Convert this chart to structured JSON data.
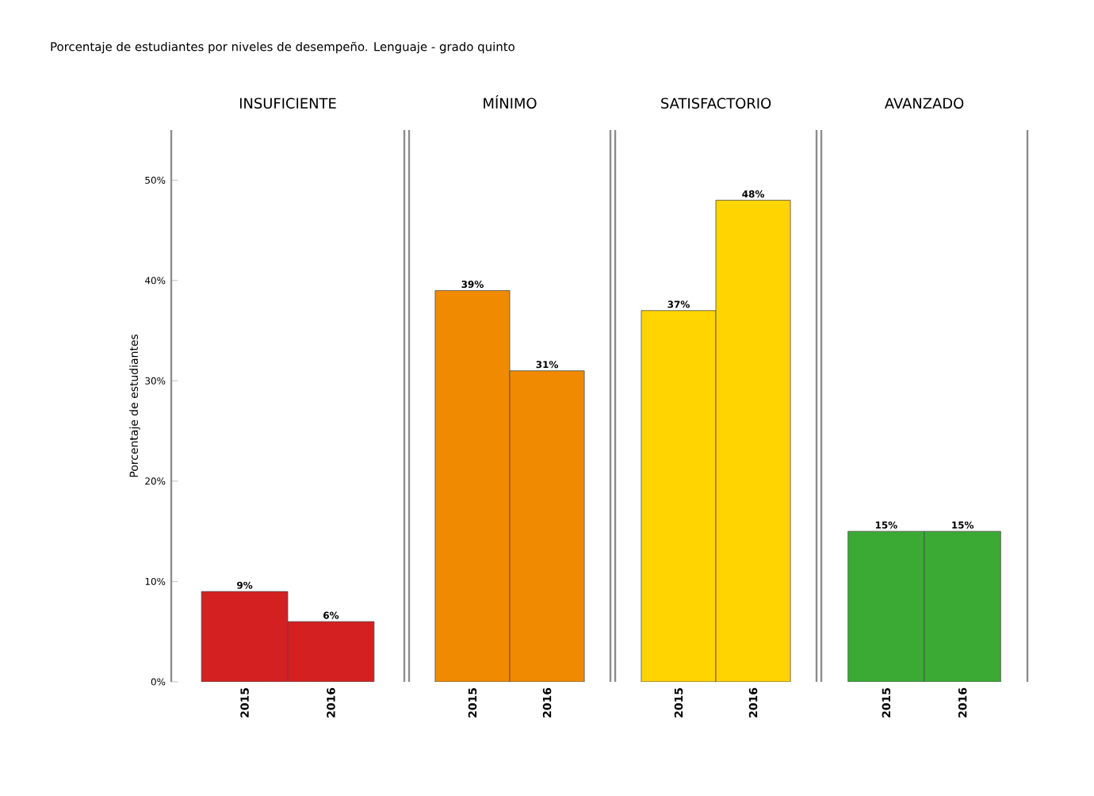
{
  "chart_data": [
    {
      "type": "bar",
      "title": "INSUFICIENTE",
      "annotations": [
        "Porcentaje de estudiantes por niveles de desempeño. Lenguaje - grado quinto"
      ],
      "ylabel": "Porcentaje de estudiantes",
      "categories": [
        "2015",
        "2016"
      ],
      "values": [
        9,
        6
      ],
      "value_labels": [
        "9%",
        "6%"
      ],
      "color": "#d42020",
      "ylim": [
        0,
        55
      ],
      "yticks": [
        {
          "value": 0,
          "label": "0%"
        },
        {
          "value": 10,
          "label": "10%"
        },
        {
          "value": 20,
          "label": "20%"
        },
        {
          "value": 30,
          "label": "30%"
        },
        {
          "value": 40,
          "label": "40%"
        },
        {
          "value": 50,
          "label": "50%"
        }
      ]
    },
    {
      "type": "bar",
      "title": "MÍNIMO",
      "categories": [
        "2015",
        "2016"
      ],
      "values": [
        39,
        31
      ],
      "value_labels": [
        "39%",
        "31%"
      ],
      "color": "#f08a00",
      "tick_labels": "x"
    },
    {
      "type": "bar",
      "title": "SATISFACTORIO",
      "categories": [
        "2015",
        "2016"
      ],
      "values": [
        37,
        48
      ],
      "value_labels": [
        "37%",
        "48%"
      ],
      "color": "#ffd400",
      "tick_labels": "x"
    },
    {
      "type": "bar",
      "title": "AVANZADO",
      "categories": [
        "2015",
        "2016"
      ],
      "values": [
        15,
        15
      ],
      "value_labels": [
        "15%",
        "15%"
      ],
      "color": "#3aaa35",
      "tick_labels": "x"
    }
  ]
}
